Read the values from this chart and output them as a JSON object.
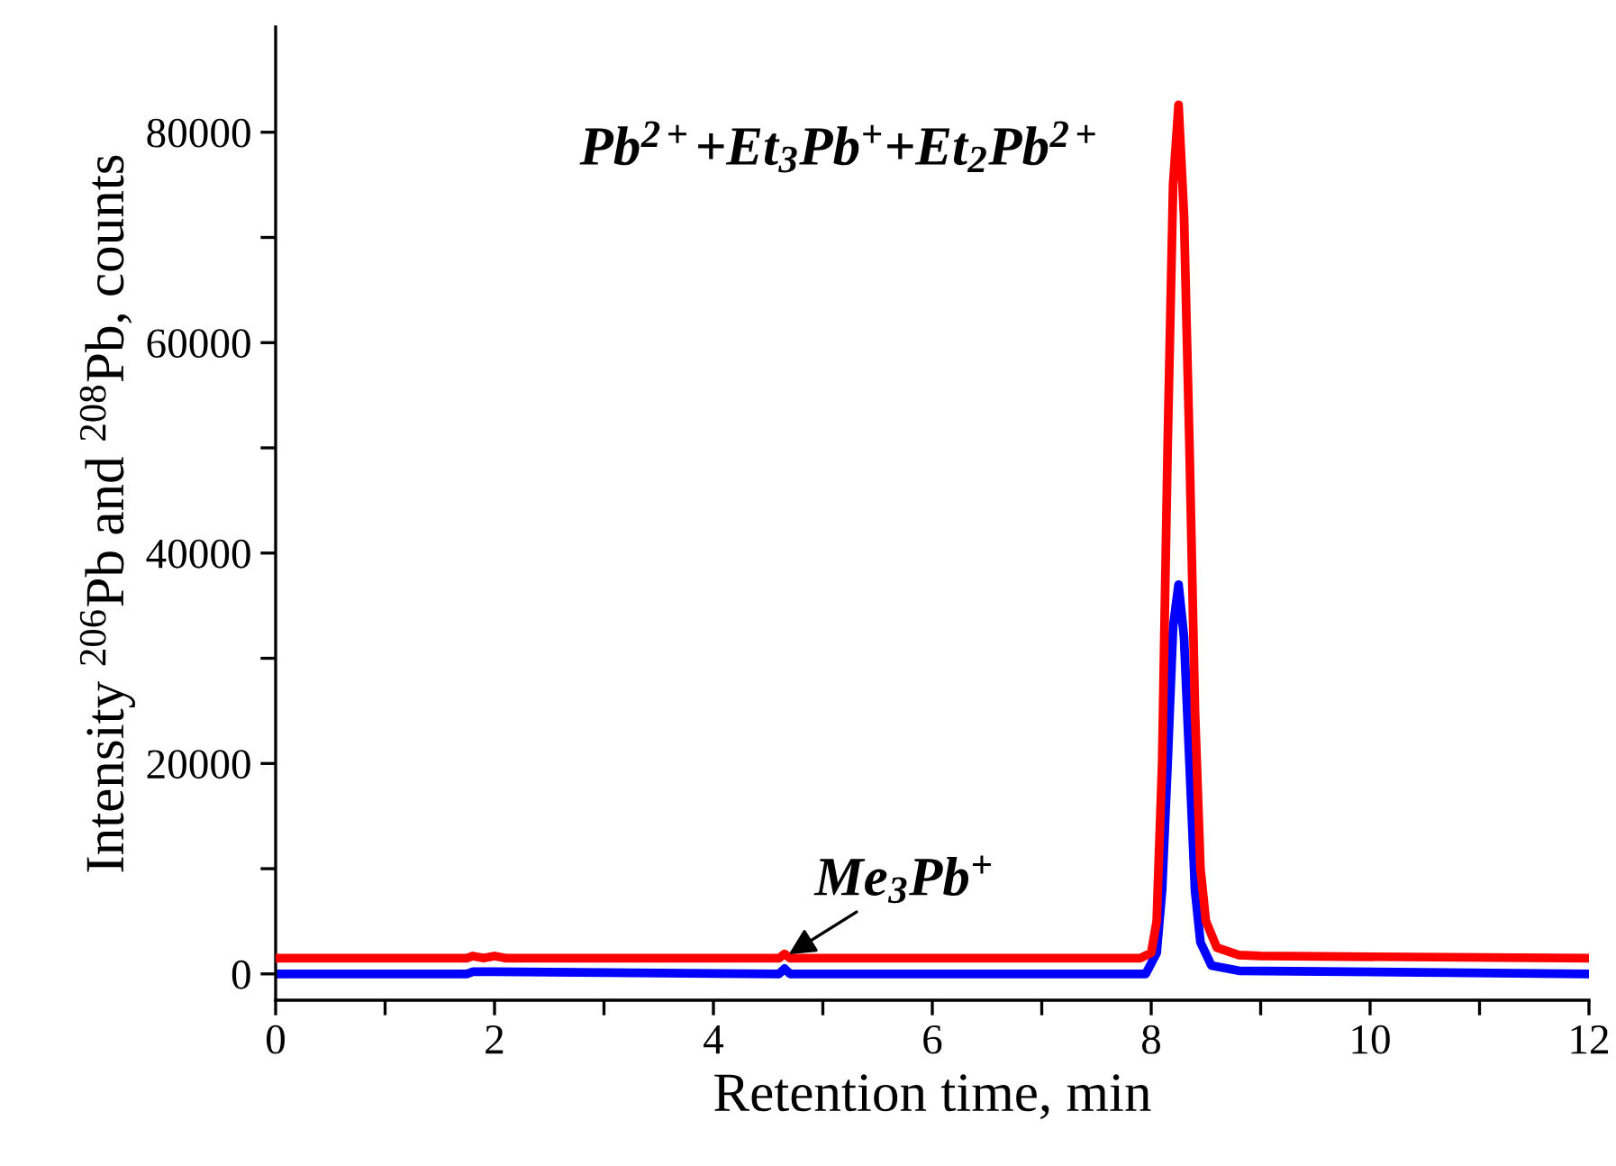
{
  "chart_data": {
    "type": "line",
    "xlabel": "Retention time, min",
    "ylabel": "Intensity $^{206}$Pb and $^{208}$Pb, counts",
    "xlim": [
      0,
      12
    ],
    "ylim": [
      -2500,
      90000
    ],
    "xticks": [
      0,
      {
        "value": 1,
        "label": null
      },
      2,
      {
        "value": 3,
        "label": null
      },
      4,
      {
        "value": 5,
        "label": null
      },
      6,
      {
        "value": 7,
        "label": null
      },
      8,
      {
        "value": 9,
        "label": null
      },
      10,
      {
        "value": 11,
        "label": null
      },
      12
    ],
    "yticks": [
      0,
      {
        "value": 10000,
        "label": null
      },
      20000,
      {
        "value": 30000,
        "label": null
      },
      40000,
      {
        "value": 50000,
        "label": null
      },
      60000,
      {
        "value": 70000,
        "label": null
      },
      80000
    ],
    "grid": false,
    "legend": false,
    "marker": "none",
    "line_style": "solid",
    "series": [
      {
        "color": "#ff0000",
        "x": [
          0,
          1.75,
          1.8,
          1.9,
          2.0,
          2.1,
          4.6,
          4.65,
          4.7,
          7.9,
          8.0,
          8.05,
          8.1,
          8.15,
          8.2,
          8.25,
          8.3,
          8.35,
          8.4,
          8.45,
          8.5,
          8.6,
          8.8,
          9.0,
          12
        ],
        "values": [
          1500,
          1500,
          1700,
          1500,
          1700,
          1500,
          1500,
          1900,
          1500,
          1500,
          2000,
          5000,
          20000,
          50000,
          75000,
          82600,
          72000,
          50000,
          25000,
          10000,
          5000,
          2500,
          1800,
          1700,
          1500
        ]
      },
      {
        "color": "#0000ff",
        "x": [
          0,
          1.75,
          1.8,
          2.0,
          4.6,
          4.65,
          4.7,
          7.95,
          8.05,
          8.1,
          8.15,
          8.2,
          8.25,
          8.3,
          8.35,
          8.4,
          8.45,
          8.55,
          8.8,
          12
        ],
        "values": [
          0,
          0,
          200,
          200,
          0,
          500,
          0,
          0,
          2000,
          8000,
          20000,
          33000,
          37000,
          32000,
          20000,
          8000,
          3000,
          800,
          300,
          0
        ]
      }
    ],
    "annotations": [
      "Pb$^{2+}$+Et$_{3}$Pb$^{+}$+Et$_{2}$Pb$^{2+}$",
      {
        "text": "Me$_{3}$Pb$^{+}$",
        "x": 4.65,
        "y": 1600
      }
    ]
  }
}
